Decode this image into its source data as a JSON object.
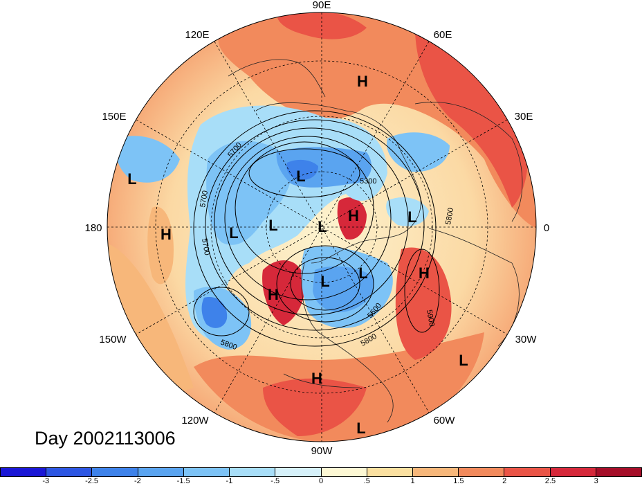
{
  "title": "Day 2002113006",
  "longitude_labels": [
    "90E",
    "60E",
    "30E",
    "0",
    "30W",
    "60W",
    "90W",
    "120W",
    "150W",
    "180",
    "150E",
    "120E"
  ],
  "pressure_centers": [
    {
      "label": "H"
    },
    {
      "label": "L"
    },
    {
      "label": "H"
    },
    {
      "label": "L"
    },
    {
      "label": "L"
    },
    {
      "label": "L"
    },
    {
      "label": "H"
    },
    {
      "label": "L"
    },
    {
      "label": "L"
    },
    {
      "label": "L"
    },
    {
      "label": "H"
    },
    {
      "label": "L"
    },
    {
      "label": "H"
    },
    {
      "label": "L"
    },
    {
      "label": "H"
    },
    {
      "label": "L"
    }
  ],
  "contour_labels": [
    "5700",
    "5700",
    "5700",
    "5300",
    "5800",
    "5600",
    "5800",
    "5800",
    "5900"
  ],
  "colorbar": {
    "ticks": [
      "-3",
      "-2.5",
      "-2",
      "-1.5",
      "-1",
      "-.5",
      "0",
      ".5",
      "1",
      "1.5",
      "2",
      "2.5",
      "3"
    ],
    "colors": [
      "#1a17d6",
      "#2d56e3",
      "#3e82ea",
      "#5aa4f0",
      "#7dc3f6",
      "#a8def8",
      "#d6f1fa",
      "#fdf8d4",
      "#fbe0a0",
      "#f7b77a",
      "#f28a5c",
      "#ea5446",
      "#d6283a",
      "#a50d28"
    ]
  }
}
